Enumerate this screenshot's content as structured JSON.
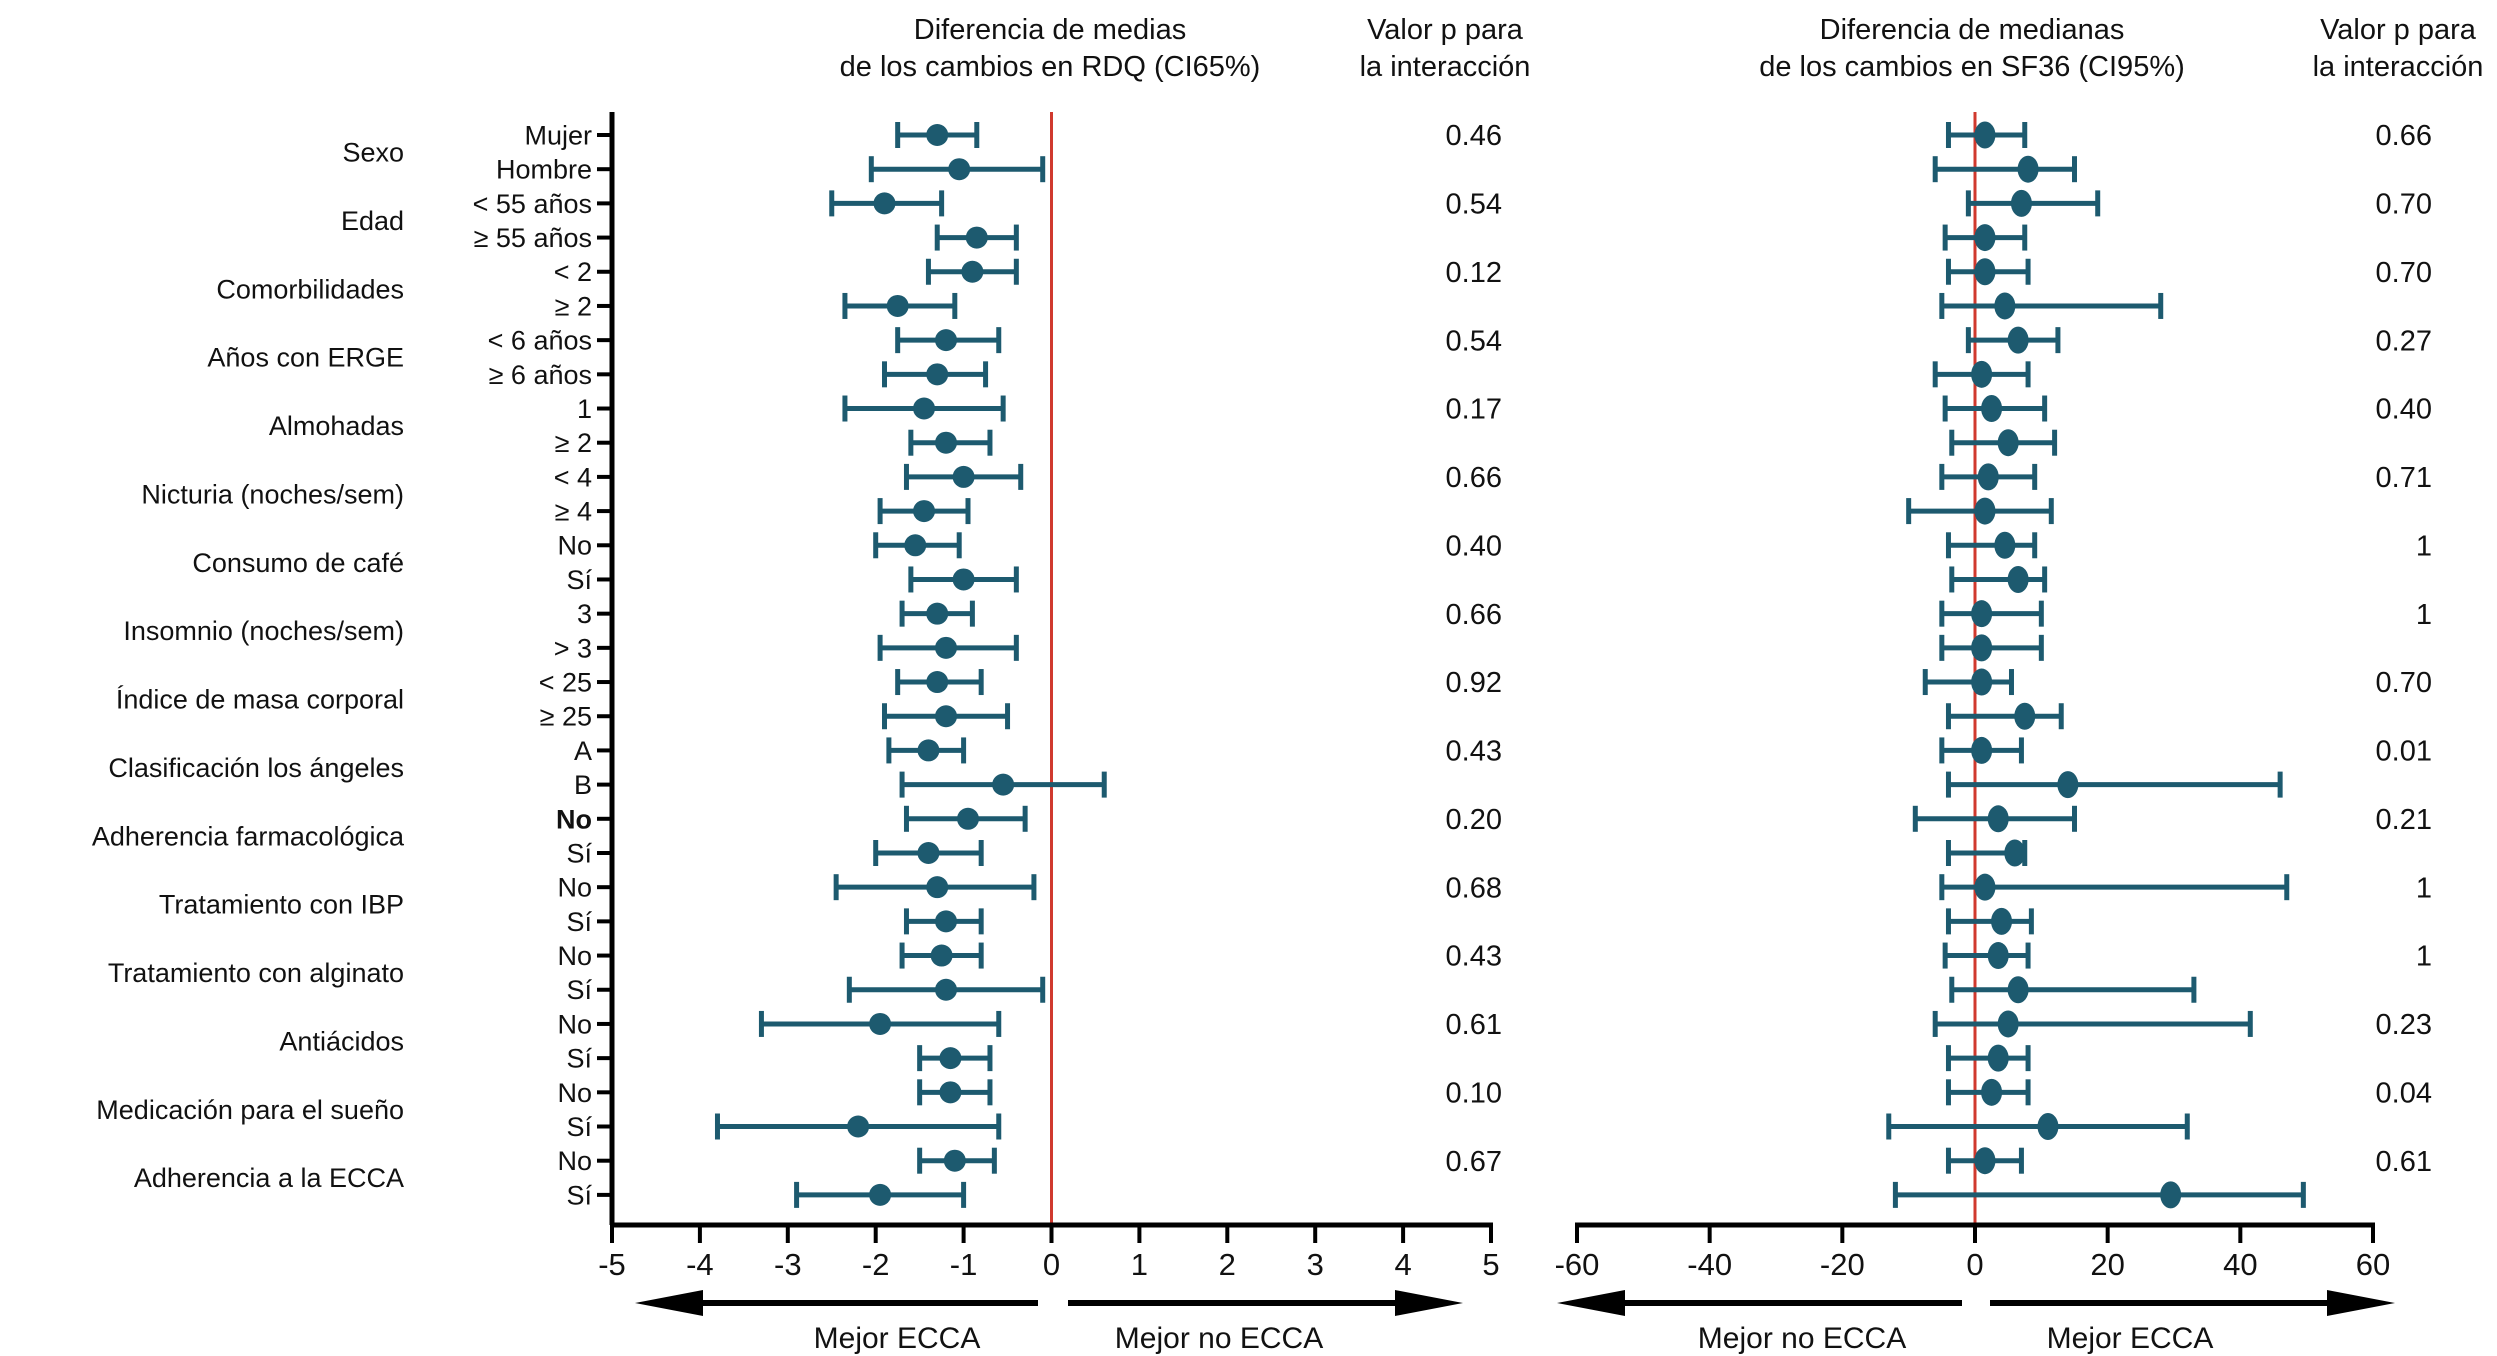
{
  "colors": {
    "point": "#1d5a6f",
    "ci_line": "#1d5a6f",
    "zero_line": "#d0392e",
    "axis": "#000000",
    "text": "#111111"
  },
  "subgroups": [
    {
      "category": "Sexo",
      "rows": [
        "Mujer",
        "Hombre"
      ]
    },
    {
      "category": "Edad",
      "rows": [
        "< 55 años",
        "≥ 55 años"
      ]
    },
    {
      "category": "Comorbilidades",
      "rows": [
        "< 2",
        "≥ 2"
      ]
    },
    {
      "category": "Años con ERGE",
      "rows": [
        "< 6 años",
        "≥ 6 años"
      ]
    },
    {
      "category": "Almohadas",
      "rows": [
        "1",
        "≥ 2"
      ]
    },
    {
      "category": "Nicturia (noches/sem)",
      "rows": [
        "< 4",
        "≥ 4"
      ]
    },
    {
      "category": "Consumo de café",
      "rows": [
        "No",
        "Sí"
      ]
    },
    {
      "category": "Insomnio (noches/sem)",
      "rows": [
        "3",
        "> 3"
      ]
    },
    {
      "category": "Índice de masa corporal",
      "rows": [
        "< 25",
        "≥ 25"
      ]
    },
    {
      "category": "Clasificación los ángeles",
      "rows": [
        "A",
        "B"
      ]
    },
    {
      "category": "Adherencia farmacológica",
      "rows": [
        "No",
        "Sí"
      ],
      "bold_rows": [
        0
      ]
    },
    {
      "category": "Tratamiento con IBP",
      "rows": [
        "No",
        "Sí"
      ]
    },
    {
      "category": "Tratamiento con alginato",
      "rows": [
        "No",
        "Sí"
      ]
    },
    {
      "category": "Antiácidos",
      "rows": [
        "No",
        "Sí"
      ]
    },
    {
      "category": "Medicación para el sueño",
      "rows": [
        "No",
        "Sí"
      ]
    },
    {
      "category": "Adherencia a la ECCA",
      "rows": [
        "No",
        "Sí"
      ]
    }
  ],
  "chart_data": [
    {
      "type": "forest",
      "title_line1": "Diferencia de medias",
      "title_line2": "de los cambios en RDQ (CI65%)",
      "p_header_line1": "Valor p para",
      "p_header_line2": "la interacción",
      "xlim": [
        -5,
        5
      ],
      "tick_labels": [
        "-5",
        "-4",
        "-3",
        "-2",
        "-1",
        "0",
        "1",
        "2",
        "3",
        "4",
        "5"
      ],
      "tick_values": [
        -5,
        -4,
        -3,
        -2,
        -1,
        0,
        1,
        2,
        3,
        4,
        5
      ],
      "zero_reference": 0,
      "arrow_left_label": "Mejor ECCA",
      "arrow_right_label": "Mejor no ECCA",
      "has_y_axis": true,
      "p_values": [
        "0.46",
        "0.54",
        "0.12",
        "0.54",
        "0.17",
        "0.66",
        "0.40",
        "0.66",
        "0.92",
        "0.43",
        "0.20",
        "0.68",
        "0.43",
        "0.61",
        "0.10",
        "0.67"
      ],
      "estimates": [
        {
          "m": -1.3,
          "lo": -1.75,
          "hi": -0.85
        },
        {
          "m": -1.05,
          "lo": -2.05,
          "hi": -0.1
        },
        {
          "m": -1.9,
          "lo": -2.5,
          "hi": -1.25
        },
        {
          "m": -0.85,
          "lo": -1.3,
          "hi": -0.4
        },
        {
          "m": -0.9,
          "lo": -1.4,
          "hi": -0.4
        },
        {
          "m": -1.75,
          "lo": -2.35,
          "hi": -1.1
        },
        {
          "m": -1.2,
          "lo": -1.75,
          "hi": -0.6
        },
        {
          "m": -1.3,
          "lo": -1.9,
          "hi": -0.75
        },
        {
          "m": -1.45,
          "lo": -2.35,
          "hi": -0.55
        },
        {
          "m": -1.2,
          "lo": -1.6,
          "hi": -0.7
        },
        {
          "m": -1.0,
          "lo": -1.65,
          "hi": -0.35
        },
        {
          "m": -1.45,
          "lo": -1.95,
          "hi": -0.95
        },
        {
          "m": -1.55,
          "lo": -2.0,
          "hi": -1.05
        },
        {
          "m": -1.0,
          "lo": -1.6,
          "hi": -0.4
        },
        {
          "m": -1.3,
          "lo": -1.7,
          "hi": -0.9
        },
        {
          "m": -1.2,
          "lo": -1.95,
          "hi": -0.4
        },
        {
          "m": -1.3,
          "lo": -1.75,
          "hi": -0.8
        },
        {
          "m": -1.2,
          "lo": -1.9,
          "hi": -0.5
        },
        {
          "m": -1.4,
          "lo": -1.85,
          "hi": -1.0
        },
        {
          "m": -0.55,
          "lo": -1.7,
          "hi": 0.6
        },
        {
          "m": -0.95,
          "lo": -1.65,
          "hi": -0.3
        },
        {
          "m": -1.4,
          "lo": -2.0,
          "hi": -0.8
        },
        {
          "m": -1.3,
          "lo": -2.45,
          "hi": -0.2
        },
        {
          "m": -1.2,
          "lo": -1.65,
          "hi": -0.8
        },
        {
          "m": -1.25,
          "lo": -1.7,
          "hi": -0.8
        },
        {
          "m": -1.2,
          "lo": -2.3,
          "hi": -0.1
        },
        {
          "m": -1.95,
          "lo": -3.3,
          "hi": -0.6
        },
        {
          "m": -1.15,
          "lo": -1.5,
          "hi": -0.7
        },
        {
          "m": -1.15,
          "lo": -1.5,
          "hi": -0.7
        },
        {
          "m": -2.2,
          "lo": -3.8,
          "hi": -0.6
        },
        {
          "m": -1.1,
          "lo": -1.5,
          "hi": -0.65
        },
        {
          "m": -1.95,
          "lo": -2.9,
          "hi": -1.0
        }
      ]
    },
    {
      "type": "forest",
      "title_line1": "Diferencia de medianas",
      "title_line2": "de los cambios en SF36 (CI95%)",
      "p_header_line1": "Valor p para",
      "p_header_line2": "la interacción",
      "xlim": [
        -60,
        60
      ],
      "tick_labels": [
        "-60",
        "-40",
        "-20",
        "0",
        "20",
        "40",
        "60"
      ],
      "tick_values": [
        -60,
        -40,
        -20,
        0,
        20,
        40,
        60
      ],
      "zero_reference": 0,
      "arrow_left_label": "Mejor no ECCA",
      "arrow_right_label": "Mejor ECCA",
      "has_y_axis": false,
      "p_values": [
        "0.66",
        "0.70",
        "0.70",
        "0.27",
        "0.40",
        "0.71",
        "1",
        "1",
        "0.70",
        "0.01",
        "0.21",
        "1",
        "1",
        "0.23",
        "0.04",
        "0.61"
      ],
      "estimates": [
        {
          "m": 1.5,
          "lo": -4,
          "hi": 7.5
        },
        {
          "m": 8,
          "lo": -6,
          "hi": 15
        },
        {
          "m": 7,
          "lo": -1,
          "hi": 18.5
        },
        {
          "m": 1.5,
          "lo": -4.5,
          "hi": 7.5
        },
        {
          "m": 1.5,
          "lo": -4,
          "hi": 8
        },
        {
          "m": 4.5,
          "lo": -5,
          "hi": 28
        },
        {
          "m": 6.5,
          "lo": -1,
          "hi": 12.5
        },
        {
          "m": 1,
          "lo": -6,
          "hi": 8
        },
        {
          "m": 2.5,
          "lo": -4.5,
          "hi": 10.5
        },
        {
          "m": 5,
          "lo": -3.5,
          "hi": 12
        },
        {
          "m": 2,
          "lo": -5,
          "hi": 9
        },
        {
          "m": 1.5,
          "lo": -10,
          "hi": 11.5
        },
        {
          "m": 4.5,
          "lo": -4,
          "hi": 9
        },
        {
          "m": 6.5,
          "lo": -3.5,
          "hi": 10.5
        },
        {
          "m": 1,
          "lo": -5,
          "hi": 10
        },
        {
          "m": 1,
          "lo": -5,
          "hi": 10
        },
        {
          "m": 1,
          "lo": -7.5,
          "hi": 5.5
        },
        {
          "m": 7.5,
          "lo": -4,
          "hi": 13
        },
        {
          "m": 1,
          "lo": -5,
          "hi": 7
        },
        {
          "m": 14,
          "lo": -4,
          "hi": 46
        },
        {
          "m": 3.5,
          "lo": -9,
          "hi": 15
        },
        {
          "m": 6,
          "lo": -4,
          "hi": 7.5
        },
        {
          "m": 1.5,
          "lo": -5,
          "hi": 47
        },
        {
          "m": 4,
          "lo": -4,
          "hi": 8.5
        },
        {
          "m": 3.5,
          "lo": -4.5,
          "hi": 8
        },
        {
          "m": 6.5,
          "lo": -3.5,
          "hi": 33
        },
        {
          "m": 5,
          "lo": -6,
          "hi": 41.5
        },
        {
          "m": 3.5,
          "lo": -4,
          "hi": 8
        },
        {
          "m": 2.5,
          "lo": -4,
          "hi": 8
        },
        {
          "m": 11,
          "lo": -13,
          "hi": 32
        },
        {
          "m": 1.5,
          "lo": -4,
          "hi": 7
        },
        {
          "m": 29.5,
          "lo": -12,
          "hi": 49.5
        }
      ]
    }
  ]
}
